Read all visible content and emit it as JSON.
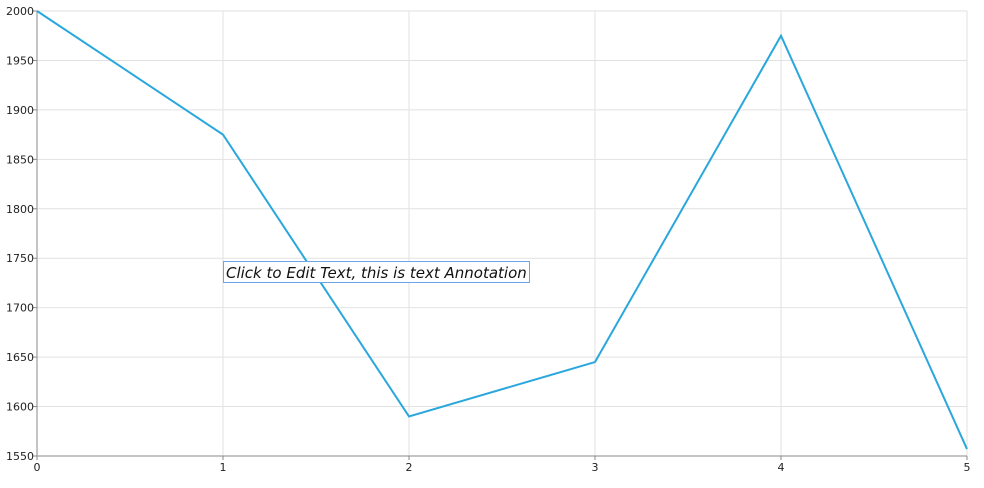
{
  "chart_data": {
    "type": "line",
    "x": [
      0,
      1,
      2,
      3,
      4,
      5
    ],
    "series": [
      {
        "values": [
          2000,
          1875,
          1590,
          1645,
          1975,
          1557
        ]
      }
    ],
    "x_ticks": [
      "0",
      "1",
      "2",
      "3",
      "4",
      "5"
    ],
    "y_ticks": [
      "1550",
      "1600",
      "1650",
      "1700",
      "1750",
      "1800",
      "1850",
      "1900",
      "1950",
      "2000"
    ],
    "xlim": [
      0,
      5
    ],
    "ylim": [
      1550,
      2000
    ],
    "grid": true,
    "line_color": "#2aa7dc",
    "annotation": {
      "text": "Click to Edit Text, this is text Annotation"
    }
  }
}
